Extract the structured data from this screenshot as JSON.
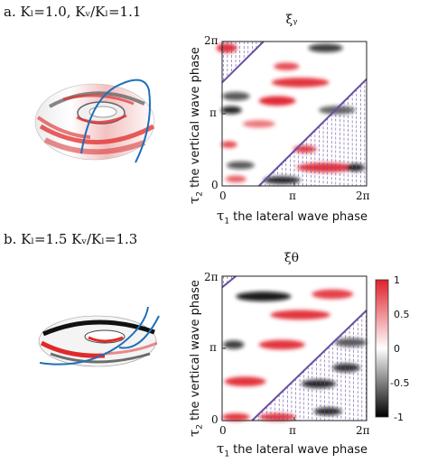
{
  "figure": {
    "panels": [
      {
        "id": "a",
        "label": "a. Kₗ=1.0, Kᵥ/Kₗ=1.1",
        "title": "ξᵧ",
        "xlabel_sym": "τ",
        "xlabel_sub": "1",
        "xlabel_text": " the lateral wave phase",
        "ylabel_sym": "τ",
        "ylabel_sub": "2",
        "ylabel_text": " the vertical wave phase",
        "xticks": [
          "0",
          "π",
          "2π"
        ],
        "yticks": [
          "0",
          "π",
          "2π"
        ]
      },
      {
        "id": "b",
        "label": "b. Kₗ=1.5 Kᵥ/Kₗ=1.3",
        "title": "ξθ",
        "xlabel_sym": "τ",
        "xlabel_sub": "1",
        "xlabel_text": " the lateral wave phase",
        "ylabel_sym": "τ",
        "ylabel_sub": "2",
        "ylabel_text": " the vertical wave phase",
        "xticks": [
          "0",
          "π",
          "2π"
        ],
        "yticks": [
          "0",
          "π",
          "2π"
        ]
      }
    ],
    "colorbar": {
      "ticks": [
        "1",
        "0.5",
        "0",
        "-0.5",
        "-1"
      ],
      "range": [
        -1,
        1
      ],
      "colors": [
        "#e0202a",
        "#ffffff",
        "#000000"
      ]
    }
  },
  "chart_data": [
    {
      "type": "heatmap",
      "title": "ξᵧ",
      "xlabel": "τ1 the lateral wave phase",
      "ylabel": "τ2 the vertical wave phase",
      "xlim": [
        0,
        6.283
      ],
      "ylim": [
        0,
        6.283
      ],
      "colorscale": {
        "min": -1,
        "max": 1,
        "low": "#000000",
        "mid": "#ffffff",
        "high": "#e0202a"
      },
      "blobs": [
        {
          "x": 0.2,
          "y": 6.0,
          "w": 0.9,
          "h": 0.25,
          "v": 0.9
        },
        {
          "x": 4.5,
          "y": 6.0,
          "w": 1.5,
          "h": 0.22,
          "v": -0.8
        },
        {
          "x": 2.8,
          "y": 5.2,
          "w": 1.1,
          "h": 0.2,
          "v": 0.8
        },
        {
          "x": 3.4,
          "y": 4.5,
          "w": 2.5,
          "h": 0.25,
          "v": 0.9
        },
        {
          "x": 0.6,
          "y": 3.9,
          "w": 1.2,
          "h": 0.22,
          "v": -0.7
        },
        {
          "x": 2.4,
          "y": 3.7,
          "w": 1.6,
          "h": 0.25,
          "v": 0.95
        },
        {
          "x": 0.4,
          "y": 3.3,
          "w": 0.9,
          "h": 0.2,
          "v": -0.9
        },
        {
          "x": 5.0,
          "y": 3.3,
          "w": 1.6,
          "h": 0.22,
          "v": -0.6
        },
        {
          "x": 1.6,
          "y": 2.7,
          "w": 1.4,
          "h": 0.2,
          "v": 0.6
        },
        {
          "x": 0.3,
          "y": 1.8,
          "w": 0.7,
          "h": 0.18,
          "v": 0.8
        },
        {
          "x": 3.6,
          "y": 1.6,
          "w": 1.0,
          "h": 0.2,
          "v": 0.85
        },
        {
          "x": 0.8,
          "y": 0.9,
          "w": 1.2,
          "h": 0.2,
          "v": -0.7
        },
        {
          "x": 4.5,
          "y": 0.8,
          "w": 2.5,
          "h": 0.25,
          "v": 0.9
        },
        {
          "x": 5.8,
          "y": 0.8,
          "w": 0.8,
          "h": 0.2,
          "v": -0.9
        },
        {
          "x": 2.6,
          "y": 0.25,
          "w": 1.6,
          "h": 0.2,
          "v": -0.9
        },
        {
          "x": 0.6,
          "y": 0.3,
          "w": 0.9,
          "h": 0.18,
          "v": 0.7
        }
      ],
      "boundary_lines": [
        {
          "x": [
            0.0,
            1.8
          ],
          "y": [
            4.5,
            6.283
          ]
        },
        {
          "x": 1.6,
          "y": 0.0,
          "x2": 6.283,
          "y2": 4.65
        }
      ]
    },
    {
      "type": "heatmap",
      "title": "ξθ",
      "xlabel": "τ1 the lateral wave phase",
      "ylabel": "τ2 the vertical wave phase",
      "xlim": [
        0,
        6.283
      ],
      "ylim": [
        0,
        6.283
      ],
      "colorscale": {
        "min": -1,
        "max": 1,
        "low": "#000000",
        "mid": "#ffffff",
        "high": "#e0202a"
      },
      "blobs": [
        {
          "x": 1.8,
          "y": 5.4,
          "w": 2.4,
          "h": 0.25,
          "v": -0.95
        },
        {
          "x": 4.8,
          "y": 5.5,
          "w": 1.8,
          "h": 0.25,
          "v": 0.85
        },
        {
          "x": 3.4,
          "y": 4.6,
          "w": 2.6,
          "h": 0.25,
          "v": 0.9
        },
        {
          "x": 0.5,
          "y": 3.3,
          "w": 0.9,
          "h": 0.22,
          "v": -0.8
        },
        {
          "x": 2.6,
          "y": 3.3,
          "w": 2.0,
          "h": 0.25,
          "v": 0.9
        },
        {
          "x": 5.6,
          "y": 3.4,
          "w": 1.4,
          "h": 0.22,
          "v": -0.7
        },
        {
          "x": 1.0,
          "y": 1.7,
          "w": 1.8,
          "h": 0.25,
          "v": 0.9
        },
        {
          "x": 4.2,
          "y": 1.6,
          "w": 1.5,
          "h": 0.22,
          "v": -0.9
        },
        {
          "x": 5.4,
          "y": 2.3,
          "w": 1.2,
          "h": 0.22,
          "v": -0.85
        },
        {
          "x": 0.6,
          "y": 0.15,
          "w": 1.2,
          "h": 0.2,
          "v": 0.9
        },
        {
          "x": 2.4,
          "y": 0.15,
          "w": 1.6,
          "h": 0.2,
          "v": 0.9
        },
        {
          "x": 4.6,
          "y": 0.4,
          "w": 1.2,
          "h": 0.2,
          "v": -0.9
        }
      ],
      "boundary_lines": [
        {
          "x": [
            0.0,
            0.6
          ],
          "y": [
            5.8,
            6.283
          ]
        },
        {
          "x": 1.3,
          "y": 0.0,
          "x2": 6.283,
          "y2": 4.8
        }
      ]
    }
  ]
}
